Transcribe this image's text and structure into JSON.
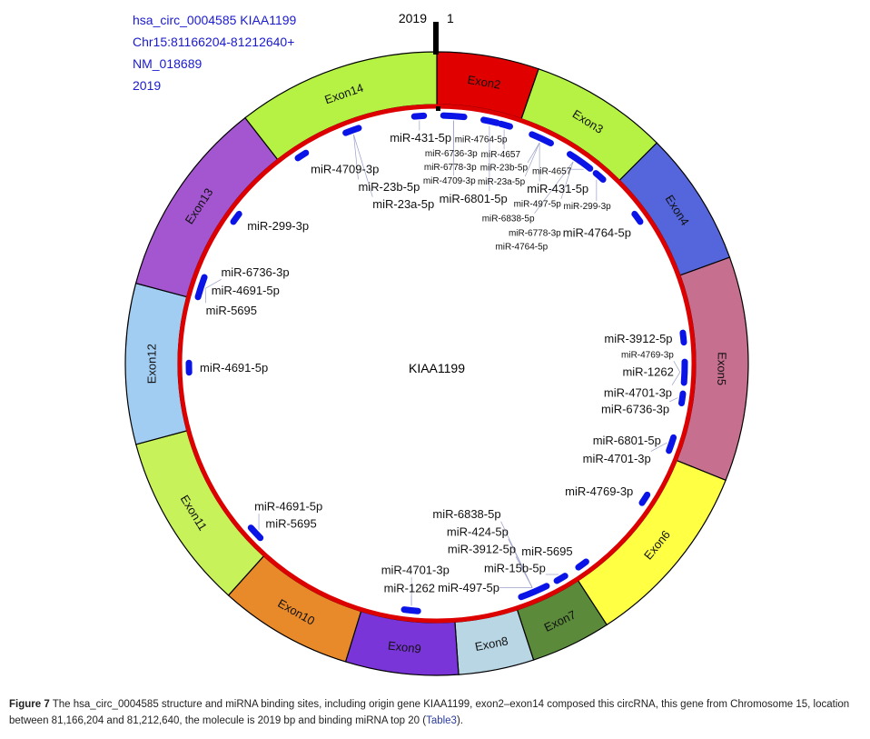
{
  "info": {
    "circ_id": "hsa_circ_0004585 KIAA1199",
    "location": "Chr15:81166204-81212640+",
    "transcript": "NM_018689",
    "length": "2019"
  },
  "tick": {
    "end_label": "2019",
    "start_label": "1"
  },
  "center_label": "KIAA1199",
  "total_bp": 2019,
  "colors": {
    "ring": "#dd0000",
    "site": "#0a14e6",
    "text": "#111111"
  },
  "exons": [
    {
      "name": "Exon2",
      "start": 1,
      "end": 107,
      "color": "#e00000"
    },
    {
      "name": "Exon3",
      "start": 107,
      "end": 252,
      "color": "#b5f244"
    },
    {
      "name": "Exon4",
      "start": 252,
      "end": 393,
      "color": "#5566dd"
    },
    {
      "name": "Exon5",
      "start": 393,
      "end": 628,
      "color": "#c76f8e"
    },
    {
      "name": "Exon6",
      "start": 628,
      "end": 824,
      "color": "#ffff44"
    },
    {
      "name": "Exon7",
      "start": 824,
      "end": 908,
      "color": "#5a8a3a"
    },
    {
      "name": "Exon8",
      "start": 908,
      "end": 987,
      "color": "#b8d6e4"
    },
    {
      "name": "Exon9",
      "start": 987,
      "end": 1105,
      "color": "#7a35d8"
    },
    {
      "name": "Exon10",
      "start": 1105,
      "end": 1245,
      "color": "#e8892a"
    },
    {
      "name": "Exon11",
      "start": 1245,
      "end": 1430,
      "color": "#c8f25a"
    },
    {
      "name": "Exon12",
      "start": 1430,
      "end": 1598,
      "color": "#a2cdf2"
    },
    {
      "name": "Exon13",
      "start": 1598,
      "end": 1806,
      "color": "#a455d0"
    },
    {
      "name": "Exon14",
      "start": 1806,
      "end": 2019,
      "color": "#b5f244"
    }
  ],
  "sites": [
    {
      "bp": 1996,
      "labels": [
        {
          "text": "miR-431-5p",
          "big": true
        }
      ]
    },
    {
      "bp": 22,
      "labels": [
        {
          "text": "miR-6736-3p"
        },
        {
          "text": "miR-6778-3p"
        },
        {
          "text": "miR-4709-3p"
        }
      ]
    },
    {
      "bp": 70,
      "labels": [
        {
          "text": "miR-6801-5p",
          "big": true
        },
        {
          "text": "miR-4764-5p"
        }
      ]
    },
    {
      "bp": 90,
      "labels": [
        {
          "text": "miR-4657"
        }
      ]
    },
    {
      "bp": 140,
      "labels": [
        {
          "text": "miR-23b-5p"
        },
        {
          "text": "miR-23a-5p"
        },
        {
          "text": "miR-431-5p",
          "big": true
        }
      ]
    },
    {
      "bp": 191,
      "labels": [
        {
          "text": "miR-497-5p"
        },
        {
          "text": "miR-6838-5p"
        }
      ]
    },
    {
      "bp": 208,
      "labels": [
        {
          "text": "miR-4657"
        }
      ]
    },
    {
      "bp": 230,
      "labels": [
        {
          "text": "miR-299-3p"
        }
      ]
    },
    {
      "bp": 245,
      "hidden_mark": true,
      "inner": true,
      "labels": [
        {
          "text": "miR-6778-3p"
        },
        {
          "text": "miR-4764-5p"
        }
      ]
    },
    {
      "bp": 303,
      "labels": [
        {
          "text": "miR-4764-5p",
          "big": true
        }
      ]
    },
    {
      "bp": 471,
      "labels": [
        {
          "text": "miR-3912-5p",
          "big": true
        }
      ]
    },
    {
      "bp": 516,
      "labels": [
        {
          "text": "miR-1262",
          "big": true
        },
        {
          "text": "miR-4701-3p",
          "big": true
        },
        {
          "text": "miR-4769-3p"
        }
      ]
    },
    {
      "bp": 550,
      "labels": [
        {
          "text": "miR-6736-3p",
          "big": true
        }
      ]
    },
    {
      "bp": 611,
      "labels": [
        {
          "text": "miR-6801-5p",
          "big": true
        },
        {
          "text": "miR-4701-3p",
          "big": true
        }
      ]
    },
    {
      "bp": 690,
      "labels": [
        {
          "text": "miR-4769-3p",
          "big": true
        }
      ]
    },
    {
      "bp": 808,
      "labels": [
        {
          "text": "miR-5695",
          "big": true
        }
      ]
    },
    {
      "bp": 841,
      "labels": [
        {
          "text": "miR-15b-5p",
          "big": true
        }
      ]
    },
    {
      "bp": 880,
      "labels": [
        {
          "text": "miR-3912-5p",
          "big": true
        },
        {
          "text": "miR-424-5p",
          "big": true
        },
        {
          "text": "miR-6838-5p",
          "big": true
        },
        {
          "text": "miR-497-5p",
          "big": true
        }
      ]
    },
    {
      "bp": 1043,
      "labels": [
        {
          "text": "miR-1262",
          "big": true
        },
        {
          "text": "miR-4701-3p",
          "big": true
        }
      ]
    },
    {
      "bp": 1273,
      "labels": [
        {
          "text": "miR-5695",
          "big": true
        },
        {
          "text": "miR-4691-5p",
          "big": true
        }
      ]
    },
    {
      "bp": 1509,
      "labels": [
        {
          "text": "miR-4691-5p",
          "big": true
        }
      ]
    },
    {
      "bp": 1615,
      "labels": [
        {
          "text": "miR-4691-5p",
          "big": true
        },
        {
          "text": "miR-5695",
          "big": true
        },
        {
          "text": "miR-6736-3p",
          "big": true
        }
      ]
    },
    {
      "bp": 1716,
      "labels": [
        {
          "text": "miR-299-3p",
          "big": true
        }
      ]
    },
    {
      "bp": 1834,
      "labels": [
        {
          "text": "miR-4709-3p",
          "big": true
        }
      ]
    },
    {
      "bp": 1907,
      "labels": [
        {
          "text": "miR-23b-5p",
          "big": true
        },
        {
          "text": "miR-23a-5p",
          "big": true
        }
      ]
    }
  ],
  "caption": {
    "figure_label": "Figure 7",
    "text": " The hsa_circ_0004585 structure and miRNA binding sites, including origin gene KIAA1199, exon2–exon14 composed this circRNA, this gene from Chromosome 15, location between 81,166,204 and 81,212,640, the molecule is 2019 bp and binding miRNA top 20 (",
    "link": "Table3",
    "end": ")."
  }
}
